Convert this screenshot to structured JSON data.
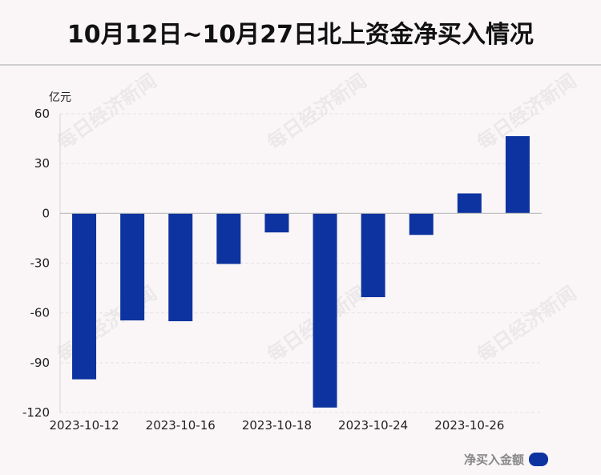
{
  "title": "10月12日~10月27日北上资金净买入情况",
  "watermark": "每日经济新闻",
  "legend": {
    "label": "净买入金额",
    "color": "#0d33a0"
  },
  "chart_data": {
    "type": "bar",
    "title": "10月12日~10月27日北上资金净买入情况",
    "ylabel": "亿元",
    "xlabel": "",
    "ylim": [
      -120,
      60
    ],
    "yticks": [
      60,
      30,
      0,
      -30,
      -60,
      -90,
      -120
    ],
    "grid": true,
    "legend_position": "bottom-right",
    "x_tick_labels": [
      "2023-10-12",
      "2023-10-16",
      "2023-10-18",
      "2023-10-24",
      "2023-10-26"
    ],
    "series": [
      {
        "name": "净买入金额",
        "color": "#0d33a0",
        "values": [
          -100,
          -64.5,
          -65,
          -30.5,
          -11.5,
          -117,
          -50.5,
          -13,
          12,
          46.5
        ]
      }
    ]
  }
}
